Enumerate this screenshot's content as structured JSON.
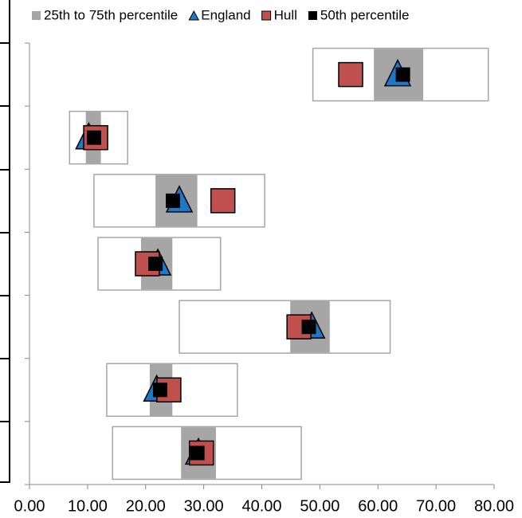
{
  "chart_data": {
    "type": "range-marker",
    "categories": [
      null,
      null,
      null,
      null,
      null,
      null,
      null
    ],
    "range": {
      "color": "#ffffff",
      "border": "#a6a6a6",
      "low": [
        48.8,
        6.9,
        11.1,
        11.8,
        25.8,
        13.3,
        14.3
      ],
      "high": [
        79.0,
        16.9,
        40.5,
        32.9,
        62.1,
        35.8,
        46.8
      ]
    },
    "band": {
      "name": "25th to 75th percentile",
      "color": "#a6a6a6",
      "low": [
        59.3,
        9.7,
        21.7,
        19.2,
        44.9,
        20.7,
        26.1
      ],
      "high": [
        67.8,
        12.3,
        28.9,
        24.6,
        51.7,
        24.6,
        32.1
      ]
    },
    "series": [
      {
        "name": "England",
        "color": "#1f77c8",
        "marker": "triangle",
        "values": [
          63.4,
          10.2,
          25.8,
          22.1,
          48.6,
          21.9,
          29.1
        ]
      },
      {
        "name": "Hull",
        "color": "#c0504d",
        "marker": "square",
        "values": [
          55.3,
          11.4,
          33.3,
          20.3,
          46.4,
          24.0,
          29.6
        ]
      },
      {
        "name": "50th percentile",
        "color": "#000000",
        "marker": "small-square",
        "values": [
          64.3,
          11.1,
          24.7,
          21.7,
          48.1,
          22.5,
          28.9
        ]
      }
    ],
    "xlim": [
      0,
      80
    ],
    "xticks": [
      {
        "value": 0,
        "label": "0.00"
      },
      {
        "value": 10,
        "label": "10.00"
      },
      {
        "value": 20,
        "label": "20.00"
      },
      {
        "value": 30,
        "label": "30.00"
      },
      {
        "value": 40,
        "label": "40.00"
      },
      {
        "value": 50,
        "label": "50.00"
      },
      {
        "value": 60,
        "label": "60.00"
      },
      {
        "value": 70,
        "label": "70.00"
      },
      {
        "value": 80,
        "label": "80.00"
      }
    ],
    "legend": "top"
  }
}
